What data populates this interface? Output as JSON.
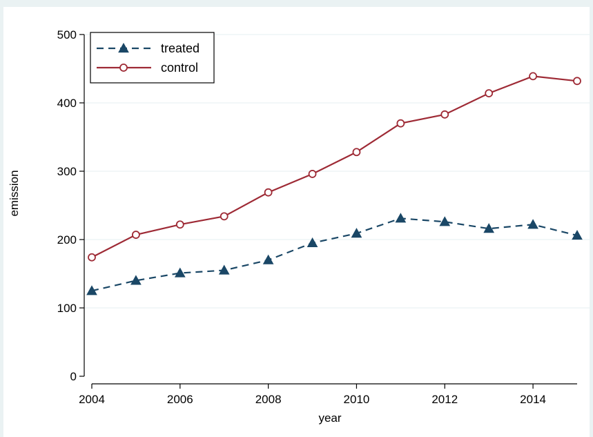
{
  "chart_data": {
    "type": "line",
    "title": "",
    "xlabel": "year",
    "ylabel": "emission",
    "x": [
      2004,
      2005,
      2006,
      2007,
      2008,
      2009,
      2010,
      2011,
      2012,
      2013,
      2014,
      2015
    ],
    "xticks": [
      2004,
      2006,
      2008,
      2010,
      2012,
      2014
    ],
    "yticks": [
      0,
      100,
      200,
      300,
      400,
      500
    ],
    "xlim": [
      2004,
      2015
    ],
    "ylim": [
      0,
      500
    ],
    "grid": true,
    "legend_position": "top-left",
    "series": [
      {
        "name": "treated",
        "values": [
          125,
          140,
          151,
          155,
          170,
          195,
          209,
          231,
          226,
          216,
          222,
          206
        ],
        "color": "#1a4766",
        "line_style": "dashed",
        "marker": "filled-triangle"
      },
      {
        "name": "control",
        "values": [
          174,
          207,
          222,
          234,
          269,
          296,
          328,
          370,
          383,
          414,
          439,
          432
        ],
        "color": "#9e2a35",
        "line_style": "solid",
        "marker": "hollow-circle"
      }
    ],
    "colors": {
      "outer_background": "#eaf2f3",
      "plot_background": "#ffffff",
      "grid": "#eaf2f3",
      "axis": "#000000"
    }
  }
}
